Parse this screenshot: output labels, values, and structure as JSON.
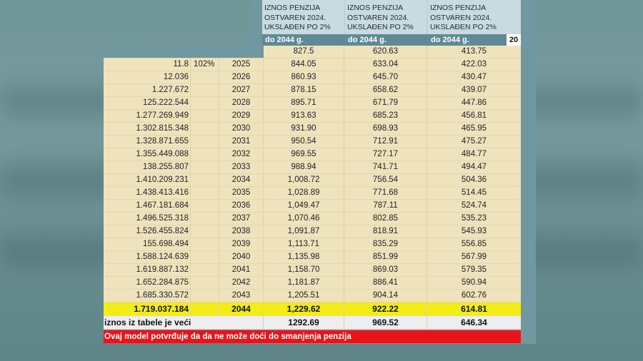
{
  "headers": [
    "IZNOS PENZIJA OSTVAREN 2024. UKSLAĐEN PO 2%",
    "IZNOS PENZIJA OSTVAREN 2024. UKSLAĐEN PO 2%",
    "IZNOS PENZIJA OSTVAREN 2024. UKSLAĐEN PO 2%"
  ],
  "subheaders": [
    "do 2044 g.",
    "do 2044 g.",
    "do 2044 g."
  ],
  "subheader_extra": "20",
  "first_row": {
    "a": "827.5",
    "b": "620.63",
    "c": "413.75"
  },
  "rows": [
    {
      "val": "11.8",
      "pct": "102%",
      "year": "2025",
      "a": "844.05",
      "b": "633.04",
      "c": "422.03"
    },
    {
      "val": "12.036",
      "pct": "",
      "year": "2026",
      "a": "860.93",
      "b": "645.70",
      "c": "430.47"
    },
    {
      "val": "1.227.672",
      "pct": "",
      "year": "2027",
      "a": "878.15",
      "b": "658.62",
      "c": "439.07"
    },
    {
      "val": "125.222.544",
      "pct": "",
      "year": "2028",
      "a": "895.71",
      "b": "671.79",
      "c": "447.86"
    },
    {
      "val": "1.277.269.949",
      "pct": "",
      "year": "2029",
      "a": "913.63",
      "b": "685.23",
      "c": "456.81"
    },
    {
      "val": "1.302.815.348",
      "pct": "",
      "year": "2030",
      "a": "931.90",
      "b": "698.93",
      "c": "465.95"
    },
    {
      "val": "1.328.871.655",
      "pct": "",
      "year": "2031",
      "a": "950.54",
      "b": "712.91",
      "c": "475.27"
    },
    {
      "val": "1.355.449.088",
      "pct": "",
      "year": "2032",
      "a": "969.55",
      "b": "727.17",
      "c": "484.77"
    },
    {
      "val": "138.255.807",
      "pct": "",
      "year": "2033",
      "a": "988.94",
      "b": "741.71",
      "c": "494.47"
    },
    {
      "val": "1.410.209.231",
      "pct": "",
      "year": "2034",
      "a": "1,008.72",
      "b": "756.54",
      "c": "504.36"
    },
    {
      "val": "1.438.413.416",
      "pct": "",
      "year": "2035",
      "a": "1,028.89",
      "b": "771.68",
      "c": "514.45"
    },
    {
      "val": "1.467.181.684",
      "pct": "",
      "year": "2036",
      "a": "1,049.47",
      "b": "787.11",
      "c": "524.74"
    },
    {
      "val": "1.496.525.318",
      "pct": "",
      "year": "2037",
      "a": "1,070.46",
      "b": "802.85",
      "c": "535.23"
    },
    {
      "val": "1.526.455.824",
      "pct": "",
      "year": "2038",
      "a": "1,091.87",
      "b": "818.91",
      "c": "545.93"
    },
    {
      "val": "155.698.494",
      "pct": "",
      "year": "2039",
      "a": "1,113.71",
      "b": "835.29",
      "c": "556.85"
    },
    {
      "val": "1.588.124.639",
      "pct": "",
      "year": "2040",
      "a": "1,135.98",
      "b": "851.99",
      "c": "567.99"
    },
    {
      "val": "1.619.887.132",
      "pct": "",
      "year": "2041",
      "a": "1,158.70",
      "b": "869.03",
      "c": "579.35"
    },
    {
      "val": "1.652.284.875",
      "pct": "",
      "year": "2042",
      "a": "1,181.87",
      "b": "886.41",
      "c": "590.94"
    },
    {
      "val": "1.685.330.572",
      "pct": "",
      "year": "2043",
      "a": "1,205.51",
      "b": "904.14",
      "c": "602.76"
    }
  ],
  "highlight_row": {
    "val": "1.719.037.184",
    "year": "2044",
    "a": "1,229.62",
    "b": "922.22",
    "c": "614.81"
  },
  "table_row": {
    "label": "iznos iz tabele je veći",
    "a": "1292.69",
    "b": "969.52",
    "c": "646.34"
  },
  "footer_note": "Ovaj model potvrđuje da da ne može doći do smanjenja penzija",
  "colors": {
    "highlight": "#f2ec17",
    "footer": "#e8141a",
    "cell_bg": "#efe3bd"
  }
}
